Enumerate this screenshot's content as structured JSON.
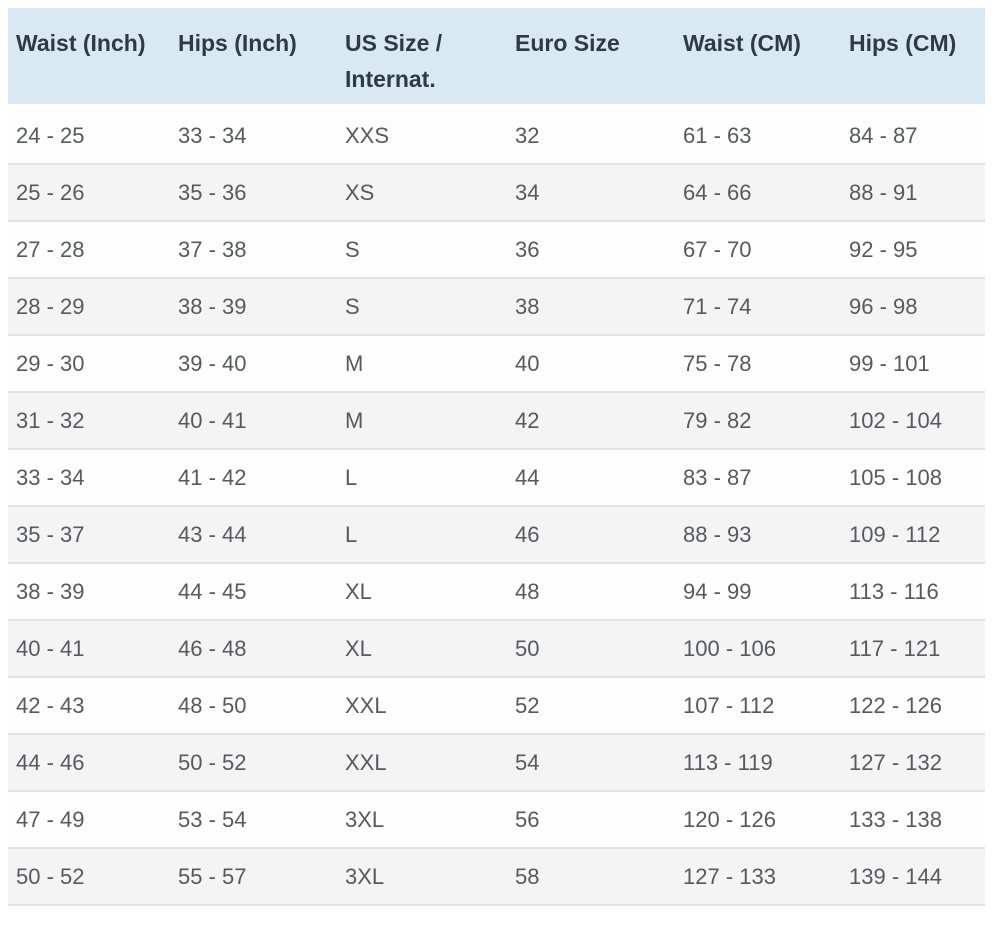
{
  "colors": {
    "header_background": "#d8e9f3",
    "header_text": "#2f3a44",
    "body_text": "#58595b",
    "row_stripe": "#f4f4f5",
    "divider": "#e3e3e3",
    "page_background": "#ffffff"
  },
  "chart_data": {
    "type": "table",
    "columns": [
      "Waist (Inch)",
      "Hips (Inch)",
      "US Size / Internat.",
      "Euro Size",
      "Waist (CM)",
      "Hips (CM)"
    ],
    "rows": [
      [
        "24 - 25",
        "33 - 34",
        "XXS",
        "32",
        "61 - 63",
        "84 - 87"
      ],
      [
        "25 - 26",
        "35 - 36",
        "XS",
        "34",
        "64 - 66",
        "88 - 91"
      ],
      [
        "27 - 28",
        "37 - 38",
        "S",
        "36",
        "67 - 70",
        "92 - 95"
      ],
      [
        "28 - 29",
        "38 - 39",
        "S",
        "38",
        "71 - 74",
        "96 - 98"
      ],
      [
        "29 - 30",
        "39 - 40",
        "M",
        "40",
        "75 - 78",
        "99 - 101"
      ],
      [
        "31 - 32",
        "40 - 41",
        "M",
        "42",
        "79 - 82",
        "102 - 104"
      ],
      [
        "33 - 34",
        "41 - 42",
        "L",
        "44",
        "83 - 87",
        "105 - 108"
      ],
      [
        "35 - 37",
        "43 - 44",
        "L",
        "46",
        "88 - 93",
        "109 - 112"
      ],
      [
        "38 - 39",
        "44 - 45",
        "XL",
        "48",
        "94 - 99",
        "113 - 116"
      ],
      [
        "40 - 41",
        "46 - 48",
        "XL",
        "50",
        "100 - 106",
        "117 - 121"
      ],
      [
        "42 - 43",
        "48 - 50",
        "XXL",
        "52",
        "107 - 112",
        "122 - 126"
      ],
      [
        "44 - 46",
        "50 - 52",
        "XXL",
        "54",
        "113 - 119",
        "127 - 132"
      ],
      [
        "47 - 49",
        "53 - 54",
        "3XL",
        "56",
        "120 - 126",
        "133 - 138"
      ],
      [
        "50 - 52",
        "55 - 57",
        "3XL",
        "58",
        "127 - 133",
        "139 - 144"
      ]
    ]
  }
}
